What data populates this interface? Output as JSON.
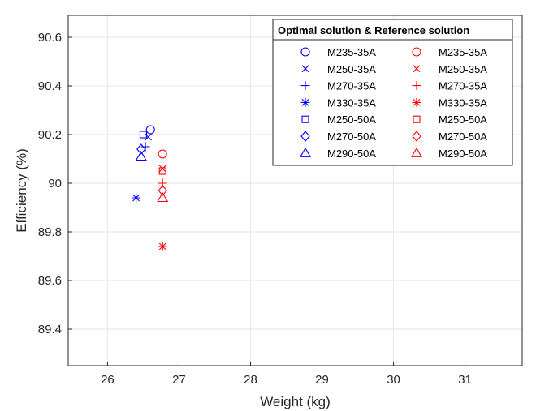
{
  "chart_data": {
    "type": "scatter",
    "title": "",
    "xlabel": "Weight (kg)",
    "ylabel": "Efficiency (%)",
    "xlim": [
      25.45,
      31.8
    ],
    "ylim": [
      89.25,
      90.69
    ],
    "xticks": [
      26,
      27,
      28,
      29,
      30,
      31
    ],
    "yticks": [
      89.4,
      89.6,
      89.8,
      90,
      90.2,
      90.4,
      90.6
    ],
    "grid": true,
    "legend": {
      "title": "Optimal solution & Reference solution",
      "placement": "top-right",
      "columns": 2
    },
    "colors": {
      "optimal": "#0000ff",
      "reference": "#ff0000"
    },
    "series": [
      {
        "name": "M235-35A",
        "group": "optimal",
        "marker": "circle",
        "x": 26.6,
        "y": 90.22
      },
      {
        "name": "M250-35A",
        "group": "optimal",
        "marker": "x",
        "x": 26.57,
        "y": 90.19
      },
      {
        "name": "M270-35A",
        "group": "optimal",
        "marker": "plus",
        "x": 26.53,
        "y": 90.15
      },
      {
        "name": "M330-35A",
        "group": "optimal",
        "marker": "asterisk",
        "x": 26.4,
        "y": 89.94
      },
      {
        "name": "M250-50A",
        "group": "optimal",
        "marker": "square",
        "x": 26.5,
        "y": 90.2
      },
      {
        "name": "M270-50A",
        "group": "optimal",
        "marker": "diamond",
        "x": 26.47,
        "y": 90.14
      },
      {
        "name": "M290-50A",
        "group": "optimal",
        "marker": "triangle",
        "x": 26.47,
        "y": 90.11
      },
      {
        "name": "M235-35A",
        "group": "reference",
        "marker": "circle",
        "x": 26.77,
        "y": 90.12
      },
      {
        "name": "M250-35A",
        "group": "reference",
        "marker": "x",
        "x": 26.77,
        "y": 90.06
      },
      {
        "name": "M270-35A",
        "group": "reference",
        "marker": "plus",
        "x": 26.77,
        "y": 90.0
      },
      {
        "name": "M330-35A",
        "group": "reference",
        "marker": "asterisk",
        "x": 26.77,
        "y": 89.74
      },
      {
        "name": "M250-50A",
        "group": "reference",
        "marker": "square",
        "x": 26.77,
        "y": 90.05
      },
      {
        "name": "M270-50A",
        "group": "reference",
        "marker": "diamond",
        "x": 26.77,
        "y": 89.97
      },
      {
        "name": "M290-50A",
        "group": "reference",
        "marker": "triangle",
        "x": 26.77,
        "y": 89.94
      }
    ]
  }
}
